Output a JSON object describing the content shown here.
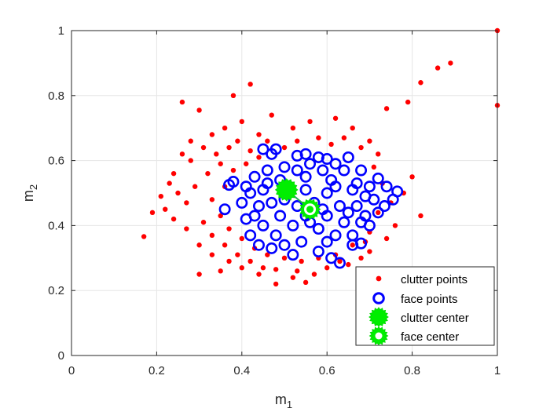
{
  "chart_data": {
    "type": "scatter",
    "title": "",
    "xlabel": {
      "base": "m",
      "sub": "1"
    },
    "ylabel": {
      "base": "m",
      "sub": "2"
    },
    "xlim": [
      0,
      1
    ],
    "ylim": [
      0,
      1
    ],
    "xticks": [
      0,
      0.2,
      0.4,
      0.6,
      0.8,
      1
    ],
    "yticks": [
      0,
      0.2,
      0.4,
      0.6,
      0.8,
      1
    ],
    "xtick_labels": [
      "0",
      "0.2",
      "0.4",
      "0.6",
      "0.8",
      "1"
    ],
    "ytick_labels": [
      "0",
      "0.2",
      "0.4",
      "0.6",
      "0.8",
      "1"
    ],
    "grid": true,
    "legend_position": "bottom-right",
    "colors": {
      "clutter_points": "#ff0000",
      "face_points": "#0000ff",
      "clutter_center": "#00ee00",
      "face_center": "#00ee00",
      "connector": "#22aa55",
      "grid": "#e6e6e6",
      "axes": "#262626"
    },
    "series": [
      {
        "name": "clutter points",
        "marker": "filled-dot",
        "points": [
          [
            0.17,
            0.366
          ],
          [
            0.19,
            0.44
          ],
          [
            0.26,
            0.78
          ],
          [
            0.3,
            0.25
          ],
          [
            0.35,
            0.26
          ],
          [
            0.38,
            0.8
          ],
          [
            0.42,
            0.835
          ],
          [
            0.47,
            0.74
          ],
          [
            0.3,
            0.755
          ],
          [
            0.28,
            0.6
          ],
          [
            0.25,
            0.5
          ],
          [
            0.22,
            0.45
          ],
          [
            0.24,
            0.56
          ],
          [
            0.33,
            0.68
          ],
          [
            0.36,
            0.7
          ],
          [
            0.4,
            0.72
          ],
          [
            0.44,
            0.68
          ],
          [
            0.52,
            0.7
          ],
          [
            0.56,
            0.72
          ],
          [
            0.62,
            0.73
          ],
          [
            0.66,
            0.7
          ],
          [
            0.7,
            0.66
          ],
          [
            0.72,
            0.62
          ],
          [
            0.74,
            0.76
          ],
          [
            0.79,
            0.78
          ],
          [
            0.82,
            0.84
          ],
          [
            0.86,
            0.885
          ],
          [
            0.89,
            0.9
          ],
          [
            1.0,
            1.0
          ],
          [
            1.0,
            0.77
          ],
          [
            0.8,
            0.55
          ],
          [
            0.82,
            0.43
          ],
          [
            0.78,
            0.5
          ],
          [
            0.76,
            0.4
          ],
          [
            0.74,
            0.36
          ],
          [
            0.7,
            0.32
          ],
          [
            0.68,
            0.3
          ],
          [
            0.65,
            0.28
          ],
          [
            0.6,
            0.27
          ],
          [
            0.57,
            0.25
          ],
          [
            0.55,
            0.225
          ],
          [
            0.52,
            0.24
          ],
          [
            0.48,
            0.265
          ],
          [
            0.45,
            0.27
          ],
          [
            0.42,
            0.29
          ],
          [
            0.39,
            0.31
          ],
          [
            0.36,
            0.34
          ],
          [
            0.33,
            0.37
          ],
          [
            0.31,
            0.41
          ],
          [
            0.27,
            0.47
          ],
          [
            0.29,
            0.52
          ],
          [
            0.32,
            0.56
          ],
          [
            0.34,
            0.62
          ],
          [
            0.37,
            0.64
          ],
          [
            0.39,
            0.66
          ],
          [
            0.42,
            0.63
          ],
          [
            0.44,
            0.61
          ],
          [
            0.46,
            0.66
          ],
          [
            0.5,
            0.64
          ],
          [
            0.53,
            0.66
          ],
          [
            0.58,
            0.67
          ],
          [
            0.61,
            0.65
          ],
          [
            0.64,
            0.67
          ],
          [
            0.68,
            0.64
          ],
          [
            0.71,
            0.58
          ],
          [
            0.73,
            0.53
          ],
          [
            0.75,
            0.47
          ],
          [
            0.72,
            0.44
          ],
          [
            0.7,
            0.38
          ],
          [
            0.66,
            0.34
          ],
          [
            0.62,
            0.31
          ],
          [
            0.58,
            0.3
          ],
          [
            0.54,
            0.29
          ],
          [
            0.5,
            0.3
          ],
          [
            0.46,
            0.31
          ],
          [
            0.43,
            0.33
          ],
          [
            0.4,
            0.36
          ],
          [
            0.37,
            0.39
          ],
          [
            0.35,
            0.43
          ],
          [
            0.33,
            0.48
          ],
          [
            0.36,
            0.52
          ],
          [
            0.38,
            0.57
          ],
          [
            0.41,
            0.59
          ],
          [
            0.35,
            0.59
          ],
          [
            0.31,
            0.64
          ],
          [
            0.28,
            0.66
          ],
          [
            0.26,
            0.62
          ],
          [
            0.23,
            0.53
          ],
          [
            0.21,
            0.49
          ],
          [
            0.24,
            0.42
          ],
          [
            0.27,
            0.39
          ],
          [
            0.3,
            0.34
          ],
          [
            0.33,
            0.31
          ],
          [
            0.37,
            0.29
          ],
          [
            0.4,
            0.27
          ],
          [
            0.44,
            0.25
          ],
          [
            0.48,
            0.22
          ],
          [
            0.53,
            0.26
          ],
          [
            0.63,
            0.29
          ],
          [
            0.69,
            0.35
          ]
        ]
      },
      {
        "name": "face points",
        "marker": "open-circle",
        "points": [
          [
            0.36,
            0.45
          ],
          [
            0.38,
            0.535
          ],
          [
            0.37,
            0.525
          ],
          [
            0.45,
            0.635
          ],
          [
            0.48,
            0.635
          ],
          [
            0.47,
            0.62
          ],
          [
            0.53,
            0.615
          ],
          [
            0.55,
            0.62
          ],
          [
            0.58,
            0.61
          ],
          [
            0.6,
            0.605
          ],
          [
            0.65,
            0.61
          ],
          [
            0.62,
            0.59
          ],
          [
            0.68,
            0.57
          ],
          [
            0.72,
            0.545
          ],
          [
            0.74,
            0.52
          ],
          [
            0.765,
            0.505
          ],
          [
            0.755,
            0.48
          ],
          [
            0.735,
            0.46
          ],
          [
            0.72,
            0.44
          ],
          [
            0.7,
            0.4
          ],
          [
            0.68,
            0.345
          ],
          [
            0.66,
            0.34
          ],
          [
            0.63,
            0.285
          ],
          [
            0.61,
            0.3
          ],
          [
            0.58,
            0.32
          ],
          [
            0.52,
            0.31
          ],
          [
            0.47,
            0.33
          ],
          [
            0.44,
            0.34
          ],
          [
            0.42,
            0.37
          ],
          [
            0.41,
            0.42
          ],
          [
            0.4,
            0.47
          ],
          [
            0.41,
            0.52
          ],
          [
            0.43,
            0.55
          ],
          [
            0.46,
            0.57
          ],
          [
            0.5,
            0.58
          ],
          [
            0.56,
            0.59
          ],
          [
            0.64,
            0.57
          ],
          [
            0.7,
            0.52
          ],
          [
            0.71,
            0.48
          ],
          [
            0.69,
            0.43
          ],
          [
            0.66,
            0.37
          ],
          [
            0.6,
            0.35
          ],
          [
            0.54,
            0.35
          ],
          [
            0.48,
            0.37
          ],
          [
            0.45,
            0.4
          ],
          [
            0.44,
            0.46
          ],
          [
            0.45,
            0.51
          ],
          [
            0.49,
            0.54
          ],
          [
            0.55,
            0.55
          ],
          [
            0.61,
            0.54
          ],
          [
            0.66,
            0.51
          ],
          [
            0.67,
            0.46
          ],
          [
            0.64,
            0.41
          ],
          [
            0.58,
            0.39
          ],
          [
            0.52,
            0.4
          ],
          [
            0.49,
            0.43
          ],
          [
            0.5,
            0.48
          ],
          [
            0.55,
            0.51
          ],
          [
            0.6,
            0.5
          ],
          [
            0.63,
            0.46
          ],
          [
            0.6,
            0.43
          ],
          [
            0.55,
            0.43
          ],
          [
            0.53,
            0.46
          ],
          [
            0.57,
            0.47
          ],
          [
            0.59,
            0.45
          ],
          [
            0.47,
            0.47
          ],
          [
            0.51,
            0.52
          ],
          [
            0.62,
            0.52
          ],
          [
            0.65,
            0.44
          ],
          [
            0.56,
            0.41
          ],
          [
            0.43,
            0.43
          ],
          [
            0.42,
            0.5
          ],
          [
            0.46,
            0.53
          ],
          [
            0.53,
            0.57
          ],
          [
            0.59,
            0.57
          ],
          [
            0.67,
            0.53
          ],
          [
            0.69,
            0.49
          ],
          [
            0.68,
            0.41
          ],
          [
            0.62,
            0.37
          ],
          [
            0.5,
            0.34
          ]
        ]
      },
      {
        "name": "clutter center",
        "marker": "filled-center",
        "points": [
          [
            0.505,
            0.51
          ]
        ]
      },
      {
        "name": "face center",
        "marker": "ring-center",
        "points": [
          [
            0.56,
            0.45
          ]
        ]
      }
    ]
  }
}
